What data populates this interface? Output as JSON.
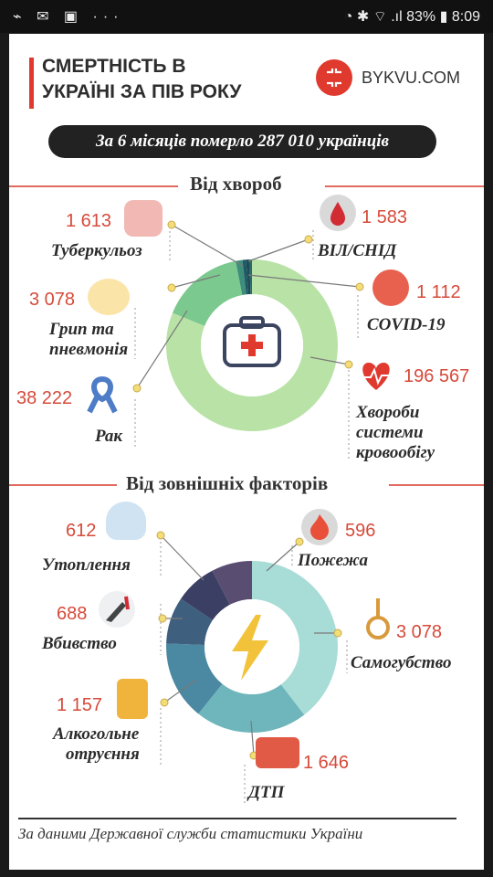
{
  "status_bar": {
    "left_icons": "⌁ ✉ ▣ ···",
    "battery": "83%",
    "time": "8:09"
  },
  "header": {
    "title_line1": "СМЕРТНІСТЬ В",
    "title_line2": "УКРАЇНІ ЗА ПІВ РОКУ",
    "brand": "BYKVU.COM"
  },
  "summary": "За 6 місяців померло 287 010 українців",
  "sections": {
    "diseases": "Від хвороб",
    "external": "Від зовнішніх факторів"
  },
  "chart_data": [
    {
      "type": "pie",
      "title": "Від хвороб",
      "labels": [
        "Хвороби системи кровообігу",
        "Рак",
        "Грип та пневмонія",
        "Туберкульоз",
        "ВІЛ/СНІД",
        "COVID-19"
      ],
      "values": [
        196567,
        38222,
        3078,
        1613,
        1583,
        1112
      ],
      "colors": [
        "#b8e2a6",
        "#7bc98f",
        "#3e8e7c",
        "#1f5a64",
        "#1e4a58",
        "#296b6a"
      ]
    },
    {
      "type": "pie",
      "title": "Від зовнішніх факторів",
      "labels": [
        "Самогубство",
        "ДТП",
        "Алкогольне отруєння",
        "Вбивство",
        "Утоплення",
        "Пожежа"
      ],
      "values": [
        3078,
        1646,
        1157,
        688,
        612,
        596
      ],
      "colors": [
        "#a8dcd6",
        "#6fb6bc",
        "#4b88a1",
        "#3e5f7e",
        "#3a3f63",
        "#5a4d72"
      ]
    }
  ],
  "diseases": [
    {
      "value": "1 613",
      "label": "Туберкульоз"
    },
    {
      "value": "3 078",
      "label1": "Грип та",
      "label2": "пневмонія"
    },
    {
      "value": "38 222",
      "label": "Рак"
    },
    {
      "value": "1 583",
      "label": "ВІЛ/СНІД"
    },
    {
      "value": "1 112",
      "label": "COVID-19"
    },
    {
      "value": "196 567",
      "label1": "Хвороби",
      "label2": "системи",
      "label3": "кровообігу"
    }
  ],
  "external": [
    {
      "value": "612",
      "label": "Утоплення"
    },
    {
      "value": "688",
      "label": "Вбивство"
    },
    {
      "value": "1 157",
      "label1": "Алкогольне",
      "label2": "отруєння"
    },
    {
      "value": "596",
      "label": "Пожежа"
    },
    {
      "value": "3 078",
      "label": "Самогубство"
    },
    {
      "value": "1 646",
      "label": "ДТП"
    }
  ],
  "footer": "За даними Державної служби статистики України",
  "colors": {
    "accent": "#e03a2f",
    "number": "#d64a3a"
  }
}
